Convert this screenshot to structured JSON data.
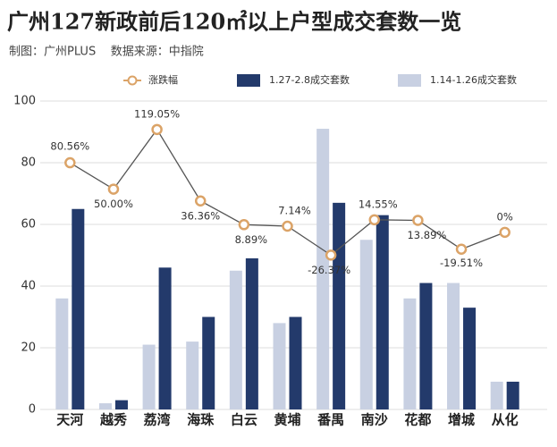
{
  "chart_data": {
    "type": "bar_line",
    "title": "广州127新政前后120㎡以上户型成交套数一览",
    "subtitle": "制图：广州PLUS    数据来源：中指院",
    "categories": [
      "天河",
      "越秀",
      "荔湾",
      "海珠",
      "白云",
      "黄埔",
      "番禺",
      "南沙",
      "花都",
      "增城",
      "从化"
    ],
    "series": [
      {
        "name": "涨跌幅",
        "color": "#dba367",
        "axis": "y2",
        "kind": "line",
        "values": [
          80.56,
          50.0,
          119.05,
          36.36,
          8.89,
          7.14,
          -26.37,
          14.55,
          13.89,
          -19.51,
          0
        ],
        "value_labels": [
          "80.56%",
          "50.00%",
          "119.05%",
          "36.36%",
          "8.89%",
          "7.14%",
          "-26.37%",
          "14.55%",
          "13.89%",
          "-19.51%",
          "0%"
        ]
      },
      {
        "name": "1.27-2.8成交套数",
        "color": "#233a6b",
        "kind": "bar",
        "values": [
          65,
          3,
          46,
          30,
          49,
          30,
          67,
          63,
          41,
          33,
          9
        ]
      },
      {
        "name": "1.14-1.26成交套数",
        "color": "#c8d0e2",
        "kind": "bar",
        "values": [
          36,
          2,
          21,
          22,
          45,
          28,
          91,
          55,
          36,
          41,
          9
        ]
      }
    ],
    "ylim": [
      0,
      100
    ],
    "yticks": [
      0,
      20,
      40,
      60,
      80,
      100
    ],
    "y2lim": [
      -205,
      152
    ],
    "grid": true,
    "legend": "top"
  }
}
